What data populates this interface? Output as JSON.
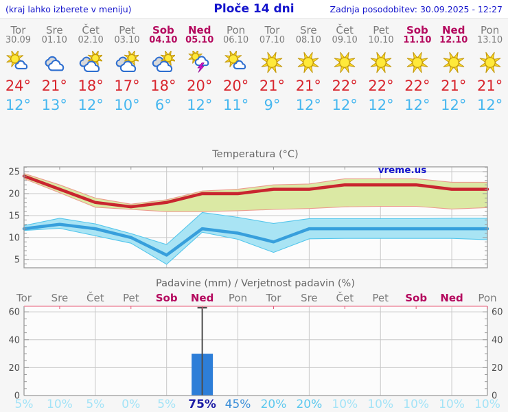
{
  "header": {
    "menu_hint": "(kraj lahko izberete v meniju)",
    "title": "Ploče 14 dni",
    "last_update": "Zadnja posodobitev: 30.09.2025 - 12:27"
  },
  "forecast": {
    "days": [
      {
        "name": "Tor",
        "date": "30.09",
        "weekend": false,
        "icon": "partly-sunny",
        "high": "24°",
        "low": "12°",
        "prob": "5%",
        "prob_level": "vlow"
      },
      {
        "name": "Sre",
        "date": "01.10",
        "weekend": false,
        "icon": "cloudy",
        "high": "21°",
        "low": "13°",
        "prob": "10%",
        "prob_level": "vlow"
      },
      {
        "name": "Čet",
        "date": "02.10",
        "weekend": false,
        "icon": "mostly-cloudy",
        "high": "18°",
        "low": "12°",
        "prob": "5%",
        "prob_level": "vlow"
      },
      {
        "name": "Pet",
        "date": "03.10",
        "weekend": false,
        "icon": "mostly-cloudy",
        "high": "17°",
        "low": "10°",
        "prob": "0%",
        "prob_level": "vlow"
      },
      {
        "name": "Sob",
        "date": "04.10",
        "weekend": true,
        "icon": "mostly-cloudy",
        "high": "18°",
        "low": "6°",
        "prob": "5%",
        "prob_level": "vlow"
      },
      {
        "name": "Ned",
        "date": "05.10",
        "weekend": true,
        "icon": "thunderstorm",
        "high": "20°",
        "low": "12°",
        "prob": "75%",
        "prob_level": "vhigh"
      },
      {
        "name": "Pon",
        "date": "06.10",
        "weekend": false,
        "icon": "partly-sunny",
        "high": "20°",
        "low": "11°",
        "prob": "45%",
        "prob_level": "high"
      },
      {
        "name": "Tor",
        "date": "07.10",
        "weekend": false,
        "icon": "sunny",
        "high": "21°",
        "low": "9°",
        "prob": "20%",
        "prob_level": "med"
      },
      {
        "name": "Sre",
        "date": "08.10",
        "weekend": false,
        "icon": "sunny",
        "high": "21°",
        "low": "12°",
        "prob": "20%",
        "prob_level": "med"
      },
      {
        "name": "Čet",
        "date": "09.10",
        "weekend": false,
        "icon": "sunny",
        "high": "22°",
        "low": "12°",
        "prob": "10%",
        "prob_level": "vlow"
      },
      {
        "name": "Pet",
        "date": "10.10",
        "weekend": false,
        "icon": "sunny",
        "high": "22°",
        "low": "12°",
        "prob": "10%",
        "prob_level": "vlow"
      },
      {
        "name": "Sob",
        "date": "11.10",
        "weekend": true,
        "icon": "sunny",
        "high": "22°",
        "low": "12°",
        "prob": "10%",
        "prob_level": "vlow"
      },
      {
        "name": "Ned",
        "date": "12.10",
        "weekend": true,
        "icon": "sunny",
        "high": "21°",
        "low": "12°",
        "prob": "10%",
        "prob_level": "vlow"
      },
      {
        "name": "Pon",
        "date": "13.10",
        "weekend": false,
        "icon": "sunny",
        "high": "21°",
        "low": "12°",
        "prob": "10%",
        "prob_level": "vlow"
      }
    ]
  },
  "chart_data": [
    {
      "type": "line",
      "title": "Temperatura (°C)",
      "watermark": "vreme.us",
      "categories": [
        "Tor 30.09",
        "Sre 01.10",
        "Čet 02.10",
        "Pet 03.10",
        "Sob 04.10",
        "Ned 05.10",
        "Pon 06.10",
        "Tor 07.10",
        "Sre 08.10",
        "Čet 09.10",
        "Pet 10.10",
        "Sob 11.10",
        "Ned 12.10",
        "Pon 13.10"
      ],
      "ylim": [
        3,
        26
      ],
      "yticks": [
        5,
        10,
        15,
        20,
        25
      ],
      "grid": true,
      "legend": "none",
      "series": [
        {
          "name": "max temperature",
          "color": "#c9252f",
          "values": [
            24,
            21,
            18,
            17,
            18,
            20,
            20,
            21,
            21,
            22,
            22,
            22,
            21,
            21
          ],
          "band_upper": [
            24.6,
            22.0,
            19.0,
            17.6,
            18.6,
            20.6,
            21.0,
            22.0,
            22.2,
            23.4,
            23.4,
            23.4,
            22.6,
            22.6
          ],
          "band_lower": [
            23.4,
            20.2,
            16.9,
            16.4,
            15.9,
            15.9,
            16.1,
            16.4,
            16.6,
            17.0,
            17.1,
            17.1,
            16.5,
            16.8
          ],
          "band_color": "#dbe9a4",
          "band_edge": "#ec9b8e"
        },
        {
          "name": "min temperature",
          "color": "#379fdc",
          "values": [
            12,
            13,
            12,
            10,
            6,
            12,
            11,
            9,
            12,
            12,
            12,
            12,
            12,
            12
          ],
          "band_upper": [
            12.7,
            14.4,
            13.1,
            10.9,
            8.4,
            15.7,
            14.6,
            13.2,
            14.3,
            14.3,
            14.3,
            14.3,
            14.4,
            14.4
          ],
          "band_lower": [
            11.6,
            12.1,
            10.4,
            8.7,
            3.9,
            11.2,
            9.6,
            6.6,
            9.7,
            9.8,
            9.8,
            9.8,
            9.8,
            9.5
          ],
          "band_color": "#a9e4f4",
          "band_edge": "#54c6ec"
        }
      ]
    },
    {
      "type": "bar",
      "title": "Padavine (mm) / Verjetnost padavin (%)",
      "categories": [
        "Tor",
        "Sre",
        "Čet",
        "Pet",
        "Sob",
        "Ned",
        "Pon",
        "Tor",
        "Sre",
        "Čet",
        "Pet",
        "Sob",
        "Ned",
        "Pon"
      ],
      "values": [
        0,
        0,
        0,
        0,
        0,
        30,
        0,
        0,
        0,
        0,
        0,
        0,
        0,
        0
      ],
      "whisker_top": [
        null,
        null,
        null,
        null,
        null,
        63,
        null,
        null,
        null,
        null,
        null,
        null,
        null,
        null
      ],
      "probability_labels": [
        "5%",
        "10%",
        "5%",
        "0%",
        "5%",
        "75%",
        "45%",
        "20%",
        "20%",
        "10%",
        "10%",
        "10%",
        "10%",
        "10%"
      ],
      "ylim": [
        0,
        64
      ],
      "yticks": [
        0,
        20,
        40,
        60
      ],
      "grid": true
    }
  ],
  "colors": {
    "header_text": "#1414cc",
    "weekday": "#7b7b7b",
    "weekend": "#b4095e",
    "temp_high": "#d8262e",
    "temp_low": "#47b7ef",
    "chart_title": "#666666",
    "axis_label": "#4d4d4d",
    "grid": "#c8c8c8",
    "border": "#999999",
    "plot_bg": "#fcfcfc",
    "page_bg": "#f6f6f6",
    "topbar_bg": "#ffffff",
    "precip_top_border": "#ef8fa2",
    "precip_top_tick": "#e05878",
    "bar": "#2d7ed8",
    "whisker": "#4d4d4d",
    "prob_vlow": "#a3e3f7",
    "prob_med": "#5cc8ee",
    "prob_high": "#3c8fd8",
    "prob_vhigh": "#1d1da5",
    "icon": {
      "sun": "#ffdf22",
      "sun_core": "#ffe93a",
      "sun_outline": "#c49a10",
      "cloud_outline": "#2f6fd0",
      "cloud_front": "#ffffff",
      "cloud_back": "#d9d9d9",
      "lightning": "#cf14cf",
      "lightning_outline": "#8f0a8f"
    }
  }
}
